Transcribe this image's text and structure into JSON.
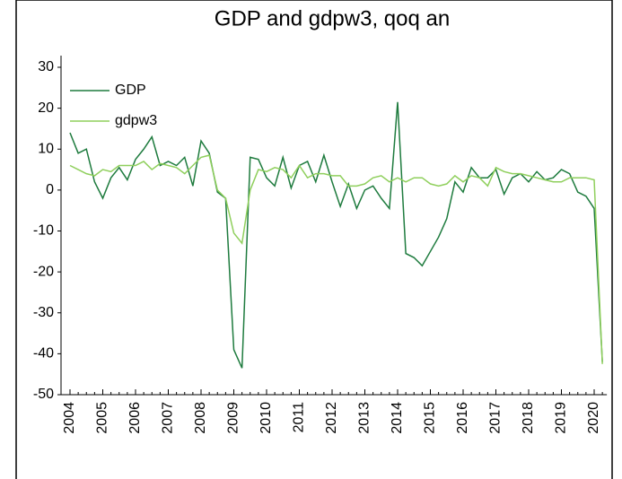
{
  "chart_data": {
    "type": "line",
    "title": "GDP and gdpw3, qoq an",
    "categories": [
      "2004",
      null,
      null,
      null,
      "2005",
      null,
      null,
      null,
      "2006",
      null,
      null,
      null,
      "2007",
      null,
      null,
      null,
      "2008",
      null,
      null,
      null,
      "2009",
      null,
      null,
      null,
      "2010",
      null,
      null,
      null,
      "2011",
      null,
      null,
      null,
      "2012",
      null,
      null,
      null,
      "2013",
      null,
      null,
      null,
      "2014",
      null,
      null,
      null,
      "2015",
      null,
      null,
      null,
      "2016",
      null,
      null,
      null,
      "2017",
      null,
      null,
      null,
      "2018",
      null,
      null,
      null,
      "2019",
      null,
      null,
      null,
      "2020",
      null
    ],
    "series": [
      {
        "name": "GDP",
        "color": "#1e7b3e",
        "values": [
          14,
          9,
          10,
          2,
          -2,
          3,
          5.5,
          2.5,
          7.5,
          10,
          13,
          6,
          7,
          6,
          8,
          1,
          12,
          9,
          -0.5,
          -2,
          -39,
          -43.5,
          8,
          7.5,
          3,
          1,
          8,
          0.5,
          6,
          7,
          2,
          8.5,
          2,
          -4,
          1.5,
          -4.5,
          0,
          1,
          -2,
          -4.5,
          21.5,
          -15.5,
          -16.5,
          -18.5,
          -15,
          -11.5,
          -7,
          2,
          -0.5,
          5.5,
          3,
          3,
          5,
          -1,
          3,
          4,
          2,
          4.5,
          2.5,
          3,
          5,
          4,
          -0.5,
          -1.5,
          -4.5,
          -42
        ]
      },
      {
        "name": "gdpw3",
        "color": "#8fcf5c",
        "values": [
          6,
          5,
          4,
          3.5,
          5,
          4.5,
          6,
          6,
          6,
          7,
          5,
          6.5,
          6,
          5.5,
          4,
          6,
          8,
          8.5,
          0,
          -2,
          -10.5,
          -13,
          0,
          5,
          4.5,
          5.5,
          5,
          3,
          6,
          3,
          4,
          4,
          3.5,
          3.5,
          1,
          1,
          1.5,
          3,
          3.5,
          2,
          3,
          2,
          3,
          3,
          1.5,
          1,
          1.5,
          3.5,
          2,
          3.5,
          3,
          1,
          5.5,
          4.5,
          4,
          4,
          3.5,
          3,
          2.5,
          2,
          2,
          3,
          3,
          3,
          2.5,
          -42.5
        ]
      }
    ],
    "ylim": [
      -50,
      30
    ],
    "yticks": [
      -50,
      -40,
      -30,
      -20,
      -10,
      0,
      10,
      20,
      30
    ],
    "grid": false,
    "legend": "upper-left"
  }
}
